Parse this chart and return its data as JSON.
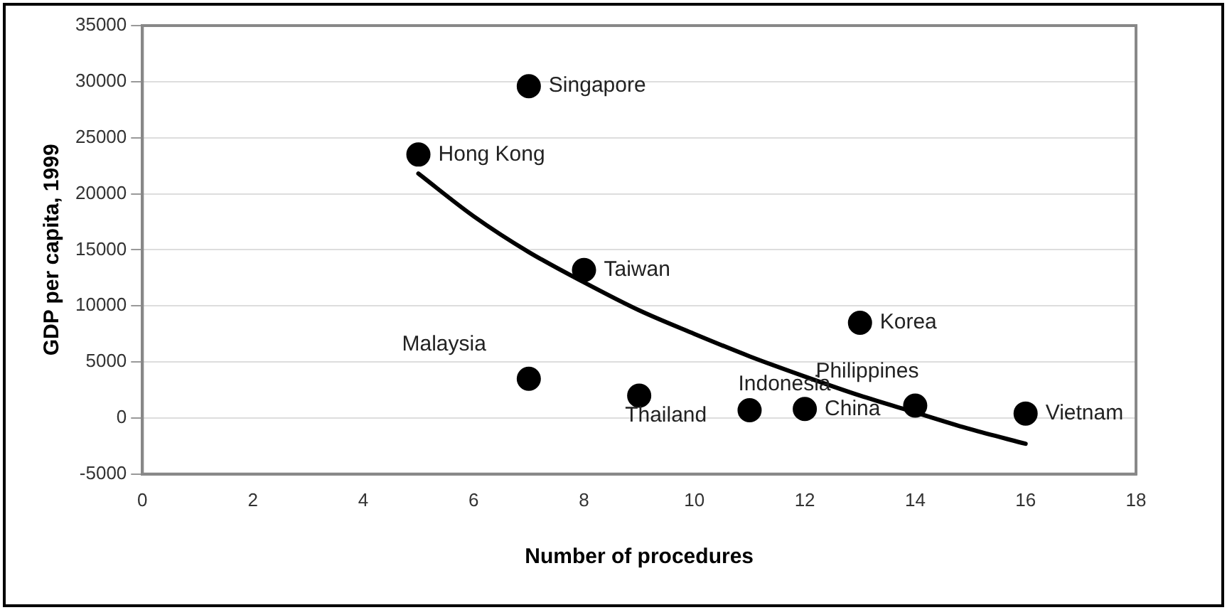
{
  "chart_data": {
    "type": "scatter",
    "xlabel": "Number of procedures",
    "ylabel": "GDP per capita, 1999",
    "xlim": [
      0,
      18
    ],
    "xticks": [
      0,
      2,
      4,
      6,
      8,
      10,
      12,
      14,
      16,
      18
    ],
    "ylim": [
      -5000,
      35000
    ],
    "yticks": [
      -5000,
      0,
      5000,
      10000,
      15000,
      20000,
      25000,
      30000,
      35000
    ],
    "grid": "y",
    "legend": false,
    "marker": "circle",
    "series": [
      {
        "color": "#000000",
        "x": [
          7,
          5,
          8,
          13,
          7,
          9,
          11,
          12,
          14,
          16
        ],
        "values": [
          29600,
          23500,
          13200,
          8500,
          3500,
          2000,
          700,
          800,
          1100,
          400
        ]
      },
      {
        "type": "line",
        "color": "#000000",
        "marker": "none",
        "x": [
          5,
          6,
          7,
          8,
          9,
          10,
          11,
          12,
          13,
          14,
          15,
          16
        ],
        "values": [
          21800,
          18000,
          14800,
          12100,
          9600,
          7500,
          5500,
          3700,
          2000,
          500,
          -1000,
          -2300
        ]
      }
    ],
    "annotations": [
      {
        "text": "Singapore",
        "x": 7,
        "y": 29600
      },
      {
        "text": "Hong Kong",
        "x": 5,
        "y": 23500
      },
      {
        "text": "Taiwan",
        "x": 8,
        "y": 13200
      },
      {
        "text": "Korea",
        "x": 13,
        "y": 8500
      },
      {
        "text": "Malaysia",
        "x": 7,
        "y": 3500
      },
      {
        "text": "Thailand",
        "x": 9,
        "y": 2000
      },
      {
        "text": "Indonesia",
        "x": 11,
        "y": 700
      },
      {
        "text": "China",
        "x": 12,
        "y": 800
      },
      {
        "text": "Philippines",
        "x": 14,
        "y": 1100
      },
      {
        "text": "Vietnam",
        "x": 16,
        "y": 400
      }
    ]
  }
}
